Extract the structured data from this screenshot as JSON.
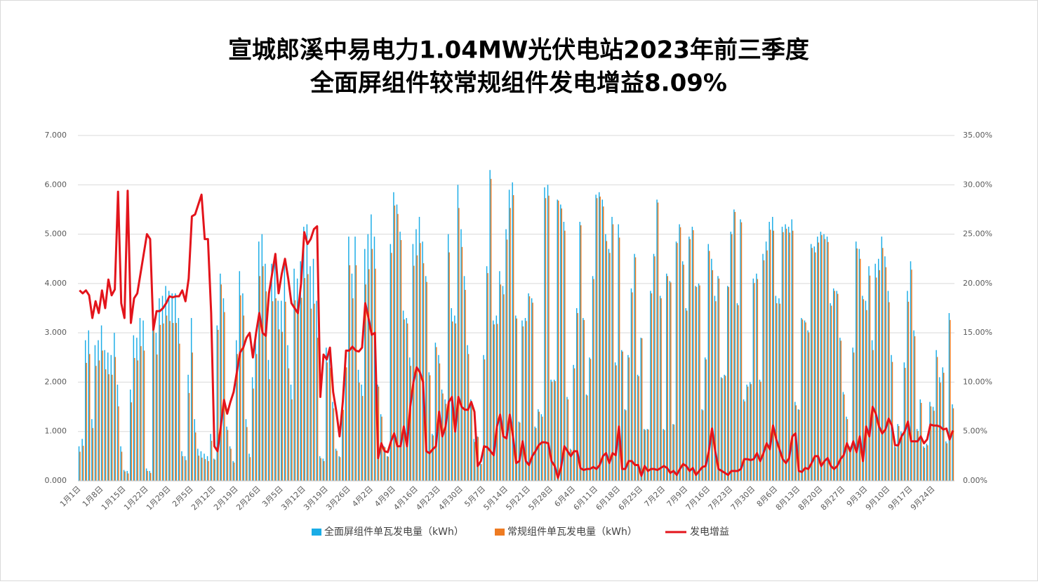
{
  "chart_data": {
    "type": "bar-line",
    "title": [
      "宣城郎溪中易电力1.04MW光伏电站2023年前三季度",
      "全面屏组件较常规组件发电增益8.09%"
    ],
    "categories": [
      "1月1日",
      null,
      null,
      null,
      null,
      null,
      null,
      "1月8日",
      null,
      null,
      null,
      null,
      null,
      null,
      "1月15日",
      null,
      null,
      null,
      null,
      null,
      null,
      "1月22日",
      null,
      null,
      null,
      null,
      null,
      null,
      "1月29日",
      null,
      null,
      null,
      null,
      null,
      null,
      "2月5日",
      null,
      null,
      null,
      null,
      null,
      null,
      "2月12日",
      null,
      null,
      null,
      null,
      null,
      null,
      "2月19日",
      null,
      null,
      null,
      null,
      null,
      null,
      "2月26日",
      null,
      null,
      null,
      null,
      null,
      null,
      "3月5日",
      null,
      null,
      null,
      null,
      null,
      null,
      "3月12日",
      null,
      null,
      null,
      null,
      null,
      null,
      "3月19日",
      null,
      null,
      null,
      null,
      null,
      null,
      "3月26日",
      null,
      null,
      null,
      null,
      null,
      null,
      "4月2日",
      null,
      null,
      null,
      null,
      null,
      null,
      "4月9日",
      null,
      null,
      null,
      null,
      null,
      null,
      "4月16日",
      null,
      null,
      null,
      null,
      null,
      null,
      "4月23日",
      null,
      null,
      null,
      null,
      null,
      null,
      "4月30日",
      null,
      null,
      null,
      null,
      null,
      null,
      "5月7日",
      null,
      null,
      null,
      null,
      null,
      null,
      "5月14日",
      null,
      null,
      null,
      null,
      null,
      null,
      "5月21日",
      null,
      null,
      null,
      null,
      null,
      null,
      "5月28日",
      null,
      null,
      null,
      null,
      null,
      null,
      "6月4日",
      null,
      null,
      null,
      null,
      null,
      null,
      "6月11日",
      null,
      null,
      null,
      null,
      null,
      null,
      "6月18日",
      null,
      null,
      null,
      null,
      null,
      null,
      "6月25日",
      null,
      null,
      null,
      null,
      null,
      null,
      "7月2日",
      null,
      null,
      null,
      null,
      null,
      null,
      "7月9日",
      null,
      null,
      null,
      null,
      null,
      null,
      "7月16日",
      null,
      null,
      null,
      null,
      null,
      null,
      "7月23日",
      null,
      null,
      null,
      null,
      null,
      null,
      "7月30日",
      null,
      null,
      null,
      null,
      null,
      null,
      "8月6日",
      null,
      null,
      null,
      null,
      null,
      null,
      "8月13日",
      null,
      null,
      null,
      null,
      null,
      null,
      "8月20日",
      null,
      null,
      null,
      null,
      null,
      null,
      "8月27日",
      null,
      null,
      null,
      null,
      null,
      null,
      "9月3日",
      null,
      null,
      null,
      null,
      null,
      null,
      "9月10日",
      null,
      null,
      null,
      null,
      null,
      null,
      "9月17日",
      null,
      null,
      null,
      null,
      null,
      null,
      "9月24日",
      null,
      null,
      null,
      null,
      null,
      null
    ],
    "series": [
      {
        "name": "全面屏组件单瓦发电量（kWh）",
        "color": "#1aace6",
        "kind": "bar",
        "values": [
          0.7,
          0.85,
          2.85,
          3.05,
          1.25,
          2.75,
          2.85,
          3.15,
          2.65,
          2.6,
          2.55,
          3.0,
          1.95,
          0.7,
          0.22,
          0.2,
          1.85,
          2.95,
          2.9,
          3.3,
          3.25,
          0.25,
          0.2,
          3.5,
          3.0,
          3.7,
          3.75,
          3.95,
          3.85,
          3.8,
          3.8,
          3.3,
          0.6,
          0.5,
          2.15,
          3.3,
          1.25,
          0.65,
          0.6,
          0.55,
          0.5,
          0.95,
          0.45,
          3.15,
          4.2,
          3.7,
          1.1,
          0.7,
          0.4,
          2.85,
          4.25,
          3.8,
          1.25,
          0.55,
          2.1,
          2.95,
          4.85,
          5.0,
          4.4,
          2.45,
          4.4,
          4.55,
          3.65,
          3.65,
          4.45,
          2.75,
          1.95,
          4.3,
          4.1,
          4.45,
          5.15,
          5.2,
          4.35,
          4.5,
          3.65,
          0.5,
          0.45,
          2.7,
          2.6,
          1.6,
          0.65,
          0.5,
          1.55,
          2.6,
          4.95,
          4.2,
          4.95,
          2.25,
          1.95,
          4.7,
          5.0,
          5.4,
          4.95,
          1.95,
          1.35,
          0.7,
          0.5,
          4.8,
          5.85,
          5.6,
          5.05,
          3.45,
          3.3,
          2.5,
          4.8,
          5.1,
          5.35,
          4.85,
          4.15,
          2.2,
          0.95,
          2.8,
          2.55,
          1.85,
          1.65,
          5.0,
          3.5,
          3.35,
          6.0,
          5.1,
          4.15,
          2.75,
          1.65,
          0.85,
          0.9,
          0.35,
          2.55,
          4.35,
          6.3,
          3.25,
          3.35,
          4.25,
          3.95,
          5.1,
          5.9,
          6.05,
          3.35,
          1.2,
          3.25,
          3.3,
          3.8,
          3.7,
          1.1,
          1.45,
          1.35,
          5.95,
          6.0,
          2.05,
          2.05,
          5.7,
          5.6,
          5.25,
          1.7,
          0.65,
          2.35,
          3.5,
          5.25,
          3.3,
          1.75,
          2.5,
          4.15,
          5.8,
          5.85,
          5.7,
          5.0,
          4.7,
          5.35,
          2.4,
          5.2,
          2.65,
          1.45,
          2.55,
          3.9,
          4.6,
          2.15,
          2.9,
          1.05,
          1.05,
          3.85,
          4.6,
          5.7,
          3.75,
          1.05,
          4.2,
          4.05,
          1.15,
          4.85,
          5.2,
          4.45,
          3.5,
          4.95,
          5.15,
          3.95,
          4.0,
          1.45,
          2.5,
          4.8,
          4.5,
          3.75,
          4.15,
          2.1,
          2.15,
          3.95,
          5.05,
          5.5,
          3.6,
          5.3,
          1.65,
          1.95,
          2.0,
          4.1,
          4.2,
          2.05,
          4.6,
          4.85,
          5.25,
          5.35,
          3.75,
          3.7,
          5.15,
          5.2,
          5.15,
          5.3,
          1.6,
          1.45,
          3.3,
          3.25,
          3.05,
          4.8,
          4.75,
          4.95,
          5.05,
          5.0,
          4.95,
          3.6,
          3.9,
          3.85,
          2.9,
          1.8,
          1.3,
          0.7,
          2.7,
          4.85,
          4.7,
          3.75,
          3.65,
          4.35,
          2.85,
          4.4,
          4.5,
          4.95,
          4.55,
          3.85,
          2.55,
          0.7,
          1.15,
          1.0,
          2.4,
          3.85,
          4.45,
          3.05,
          1.05,
          1.65,
          0.7,
          0.75,
          1.6,
          1.5,
          2.65,
          2.1,
          2.3,
          0.8,
          3.4,
          1.55
        ]
      },
      {
        "name": "常规组件单瓦发电量（kWh）",
        "color": "#ee7b22",
        "kind": "bar",
        "values": [
          0.59,
          0.71,
          2.39,
          2.57,
          1.07,
          2.33,
          2.44,
          2.64,
          2.26,
          2.16,
          2.15,
          2.51,
          1.51,
          0.59,
          0.19,
          0.15,
          1.59,
          2.49,
          2.44,
          2.73,
          2.64,
          0.2,
          0.16,
          3.04,
          2.56,
          3.16,
          3.19,
          3.35,
          3.24,
          3.2,
          3.2,
          2.78,
          0.5,
          0.42,
          1.78,
          2.6,
          0.98,
          0.51,
          0.47,
          0.44,
          0.4,
          0.81,
          0.43,
          3.06,
          3.98,
          3.42,
          1.03,
          0.65,
          0.37,
          2.57,
          3.76,
          3.35,
          1.09,
          0.48,
          1.87,
          2.57,
          4.15,
          4.35,
          3.84,
          2.06,
          3.64,
          3.7,
          3.07,
          3.02,
          3.63,
          2.28,
          1.65,
          3.66,
          3.5,
          3.71,
          4.11,
          4.19,
          3.49,
          3.59,
          2.9,
          0.46,
          0.4,
          2.4,
          2.29,
          1.47,
          0.61,
          0.48,
          1.44,
          2.3,
          4.37,
          3.7,
          4.37,
          1.99,
          1.72,
          3.98,
          4.29,
          4.7,
          4.3,
          1.91,
          1.3,
          0.68,
          0.49,
          4.62,
          5.58,
          5.41,
          4.88,
          3.27,
          3.19,
          2.33,
          4.36,
          4.57,
          4.82,
          4.41,
          4.03,
          2.14,
          0.92,
          2.71,
          2.38,
          1.77,
          1.56,
          4.63,
          3.23,
          3.19,
          5.53,
          4.74,
          3.87,
          2.57,
          1.53,
          0.79,
          0.89,
          0.34,
          2.46,
          4.21,
          6.12,
          3.17,
          3.18,
          3.98,
          3.78,
          4.89,
          5.53,
          5.79,
          3.29,
          1.18,
          3.13,
          3.24,
          3.74,
          3.61,
          1.07,
          1.4,
          1.3,
          5.73,
          5.78,
          2.01,
          2.02,
          5.68,
          5.52,
          5.07,
          1.65,
          0.63,
          2.28,
          3.4,
          5.18,
          3.26,
          1.73,
          2.47,
          4.09,
          5.73,
          5.76,
          5.56,
          4.86,
          4.62,
          5.2,
          2.34,
          4.93,
          2.62,
          1.43,
          2.5,
          3.82,
          4.53,
          2.12,
          2.89,
          1.03,
          1.04,
          3.8,
          4.55,
          5.64,
          3.7,
          1.03,
          4.15,
          4.02,
          1.14,
          4.82,
          5.14,
          4.38,
          3.45,
          4.9,
          5.08,
          3.93,
          3.96,
          1.43,
          2.46,
          4.66,
          4.27,
          3.64,
          4.1,
          2.08,
          2.13,
          3.93,
          5.0,
          5.45,
          3.56,
          5.24,
          1.61,
          1.91,
          1.96,
          4.01,
          4.09,
          2.01,
          4.47,
          4.67,
          5.09,
          5.07,
          3.6,
          3.59,
          5.04,
          5.11,
          5.03,
          5.07,
          1.53,
          1.44,
          3.27,
          3.21,
          3.01,
          4.72,
          4.63,
          4.83,
          4.98,
          4.9,
          4.84,
          3.55,
          3.85,
          3.79,
          2.84,
          1.75,
          1.25,
          0.68,
          2.6,
          4.71,
          4.5,
          3.68,
          3.46,
          4.16,
          2.65,
          4.12,
          4.27,
          4.72,
          4.33,
          3.62,
          2.41,
          0.68,
          1.11,
          0.96,
          2.29,
          3.63,
          4.28,
          2.93,
          1.01,
          1.58,
          0.67,
          0.72,
          1.51,
          1.42,
          2.51,
          1.99,
          2.19,
          0.76,
          3.26,
          1.47
        ]
      },
      {
        "name": "发电增益",
        "color": "#e3141b",
        "kind": "line",
        "axis": "y2",
        "values": [
          19.3,
          19.0,
          19.3,
          18.8,
          16.5,
          18.2,
          17.0,
          19.3,
          17.5,
          20.4,
          18.8,
          19.4,
          29.3,
          18.0,
          16.5,
          29.4,
          16.0,
          18.5,
          19.0,
          21.0,
          23.0,
          25.0,
          24.5,
          15.3,
          17.2,
          17.2,
          17.5,
          18.0,
          18.7,
          18.6,
          18.7,
          18.7,
          19.3,
          18.2,
          20.5,
          26.8,
          27.0,
          28.0,
          29.0,
          24.5,
          24.5,
          17.0,
          3.5,
          3.0,
          5.5,
          8.2,
          6.8,
          8.0,
          9.0,
          11.0,
          13.0,
          13.5,
          14.5,
          15.0,
          12.5,
          15.0,
          17.0,
          15.0,
          14.7,
          19.0,
          21.0,
          23.0,
          19.0,
          21.0,
          22.5,
          20.5,
          18.0,
          17.5,
          17.0,
          20.0,
          25.2,
          24.0,
          24.5,
          25.5,
          25.8,
          8.5,
          12.8,
          12.3,
          13.5,
          9.0,
          7.0,
          4.5,
          8.0,
          13.2,
          13.2,
          13.6,
          13.2,
          13.1,
          13.5,
          18.0,
          16.5,
          14.8,
          15.0,
          2.3,
          3.8,
          3.0,
          2.9,
          4.0,
          4.8,
          3.5,
          3.5,
          5.5,
          3.5,
          7.5,
          10.0,
          11.5,
          11.0,
          10.0,
          3.0,
          2.8,
          3.2,
          3.5,
          7.0,
          4.5,
          5.5,
          8.0,
          8.5,
          5.0,
          8.5,
          7.5,
          7.2,
          7.2,
          8.0,
          7.0,
          1.5,
          2.0,
          3.5,
          3.4,
          3.0,
          2.6,
          5.5,
          6.7,
          4.5,
          4.3,
          6.7,
          4.5,
          1.8,
          2.0,
          4.0,
          2.0,
          1.6,
          2.5,
          3.0,
          3.6,
          3.9,
          3.9,
          3.8,
          2.0,
          1.5,
          0.3,
          1.4,
          3.5,
          3.0,
          2.5,
          3.0,
          3.0,
          1.3,
          1.1,
          1.2,
          1.2,
          1.4,
          1.2,
          1.6,
          2.5,
          2.8,
          1.8,
          2.8,
          2.6,
          5.5,
          1.2,
          1.2,
          2.0,
          2.0,
          1.6,
          1.6,
          0.5,
          1.5,
          1.0,
          1.2,
          1.2,
          1.1,
          1.3,
          1.5,
          1.3,
          0.8,
          1.0,
          0.6,
          1.2,
          1.7,
          1.5,
          1.0,
          1.3,
          0.6,
          1.0,
          1.4,
          1.5,
          3.0,
          5.3,
          3.0,
          1.2,
          1.0,
          0.8,
          0.6,
          1.0,
          1.0,
          1.0,
          1.2,
          2.2,
          2.2,
          2.1,
          2.2,
          2.8,
          2.0,
          2.8,
          3.8,
          3.2,
          5.6,
          4.2,
          3.2,
          2.2,
          1.8,
          2.3,
          4.5,
          4.8,
          1.0,
          0.9,
          1.3,
          1.2,
          1.8,
          2.5,
          2.5,
          1.5,
          2.0,
          2.3,
          1.5,
          1.2,
          1.5,
          2.2,
          2.6,
          3.8,
          3.0,
          4.0,
          2.9,
          4.5,
          2.0,
          5.5,
          4.5,
          7.5,
          6.8,
          5.5,
          4.8,
          5.2,
          6.3,
          5.6,
          3.6,
          3.6,
          4.5,
          5.0,
          6.0,
          4.0,
          4.0,
          4.0,
          4.5,
          3.8,
          4.2,
          5.7,
          5.6,
          5.6,
          5.5,
          5.2,
          5.3,
          4.2,
          5.1
        ]
      }
    ],
    "ylim": [
      0,
      7
    ],
    "yticks": [
      {
        "value": 0,
        "label": "0.000"
      },
      {
        "value": 1,
        "label": "1.000"
      },
      {
        "value": 2,
        "label": "2.000"
      },
      {
        "value": 3,
        "label": "3.000"
      },
      {
        "value": 4,
        "label": "4.000"
      },
      {
        "value": 5,
        "label": "5.000"
      },
      {
        "value": 6,
        "label": "6.000"
      },
      {
        "value": 7,
        "label": "7.000"
      }
    ],
    "y2lim": [
      0,
      35
    ],
    "y2ticks": [
      {
        "value": 0,
        "label": "0.00%"
      },
      {
        "value": 5,
        "label": "5.00%"
      },
      {
        "value": 10,
        "label": "10.00%"
      },
      {
        "value": 15,
        "label": "15.00%"
      },
      {
        "value": 20,
        "label": "20.00%"
      },
      {
        "value": 25,
        "label": "25.00%"
      },
      {
        "value": 30,
        "label": "30.00%"
      },
      {
        "value": 35,
        "label": "35.00%"
      }
    ],
    "grid": true,
    "legend": "bottom"
  }
}
